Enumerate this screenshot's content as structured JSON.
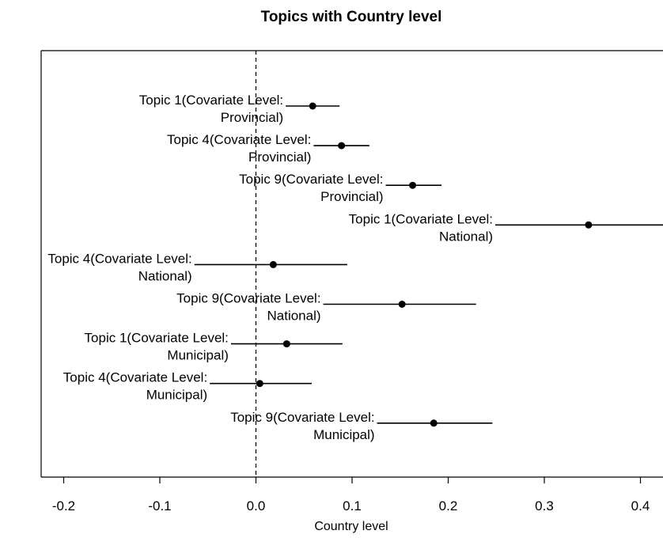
{
  "chart_data": {
    "type": "scatter",
    "title": "Topics with Country level",
    "xlabel": "Country level",
    "ylabel": "",
    "xlim": [
      -0.225,
      0.425
    ],
    "xticks": [
      "-0.2",
      "-0.1",
      "0.0",
      "0.1",
      "0.2",
      "0.3",
      "0.4"
    ],
    "reference_line": 0,
    "grid": false,
    "points": [
      {
        "label": [
          "Topic 1(Covariate Level:",
          "Provincial)"
        ],
        "estimate": 0.059,
        "lower": 0.031,
        "upper": 0.087
      },
      {
        "label": [
          "Topic 4(Covariate Level:",
          "Provincial)"
        ],
        "estimate": 0.089,
        "lower": 0.06,
        "upper": 0.118
      },
      {
        "label": [
          "Topic 9(Covariate Level:",
          "Provincial)"
        ],
        "estimate": 0.163,
        "lower": 0.135,
        "upper": 0.193
      },
      {
        "label": [
          "Topic 1(Covariate Level:",
          "National)"
        ],
        "estimate": 0.346,
        "lower": 0.249,
        "upper": 0.425
      },
      {
        "label": [
          "Topic 4(Covariate Level:",
          "National)"
        ],
        "estimate": 0.018,
        "lower": -0.064,
        "upper": 0.095
      },
      {
        "label": [
          "Topic 9(Covariate Level:",
          "National)"
        ],
        "estimate": 0.152,
        "lower": 0.07,
        "upper": 0.229
      },
      {
        "label": [
          "Topic 1(Covariate Level:",
          "Municipal)"
        ],
        "estimate": 0.032,
        "lower": -0.026,
        "upper": 0.09
      },
      {
        "label": [
          "Topic 4(Covariate Level:",
          "Municipal)"
        ],
        "estimate": 0.004,
        "lower": -0.048,
        "upper": 0.058
      },
      {
        "label": [
          "Topic 9(Covariate Level:",
          "Municipal)"
        ],
        "estimate": 0.185,
        "lower": 0.126,
        "upper": 0.246
      }
    ]
  }
}
